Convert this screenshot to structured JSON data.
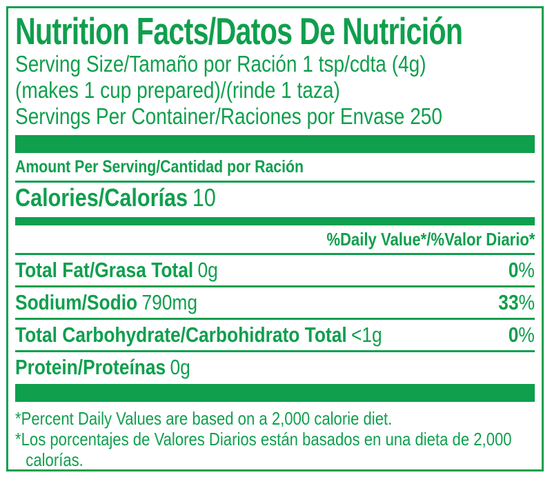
{
  "colors": {
    "green": "#0f9f4d",
    "background": "#ffffff"
  },
  "label": {
    "title": "Nutrition Facts/Datos De Nutrición",
    "serving_lines": [
      "Serving Size/Tamaño por Ración 1 tsp/cdta (4g)",
      "(makes 1 cup prepared)/(rinde 1 taza)",
      "Servings Per Container/Raciones por Envase 250"
    ],
    "amount_per_serving": "Amount Per Serving/Cantidad por Ración",
    "calories": {
      "label": "Calories/Calorías",
      "value": "10"
    },
    "daily_value_header": "%Daily Value*/%Valor Diario*",
    "percent_sign": "%",
    "nutrients": [
      {
        "name": "Total Fat/Grasa Total",
        "amount": "0g",
        "dv": "0"
      },
      {
        "name": "Sodium/Sodio",
        "amount": "790mg",
        "dv": "33"
      },
      {
        "name": "Total Carbohydrate/Carbohidrato Total",
        "amount": "<1g",
        "dv": "0"
      },
      {
        "name": "Protein/Proteínas",
        "amount": "0g"
      }
    ],
    "footnotes": [
      {
        "marker": "*",
        "text": "Percent Daily Values are based on a 2,000 calorie diet."
      },
      {
        "marker": "*",
        "text": "Los porcentajes de Valores Diarios están basados en una dieta de 2,000 calorías."
      }
    ]
  }
}
